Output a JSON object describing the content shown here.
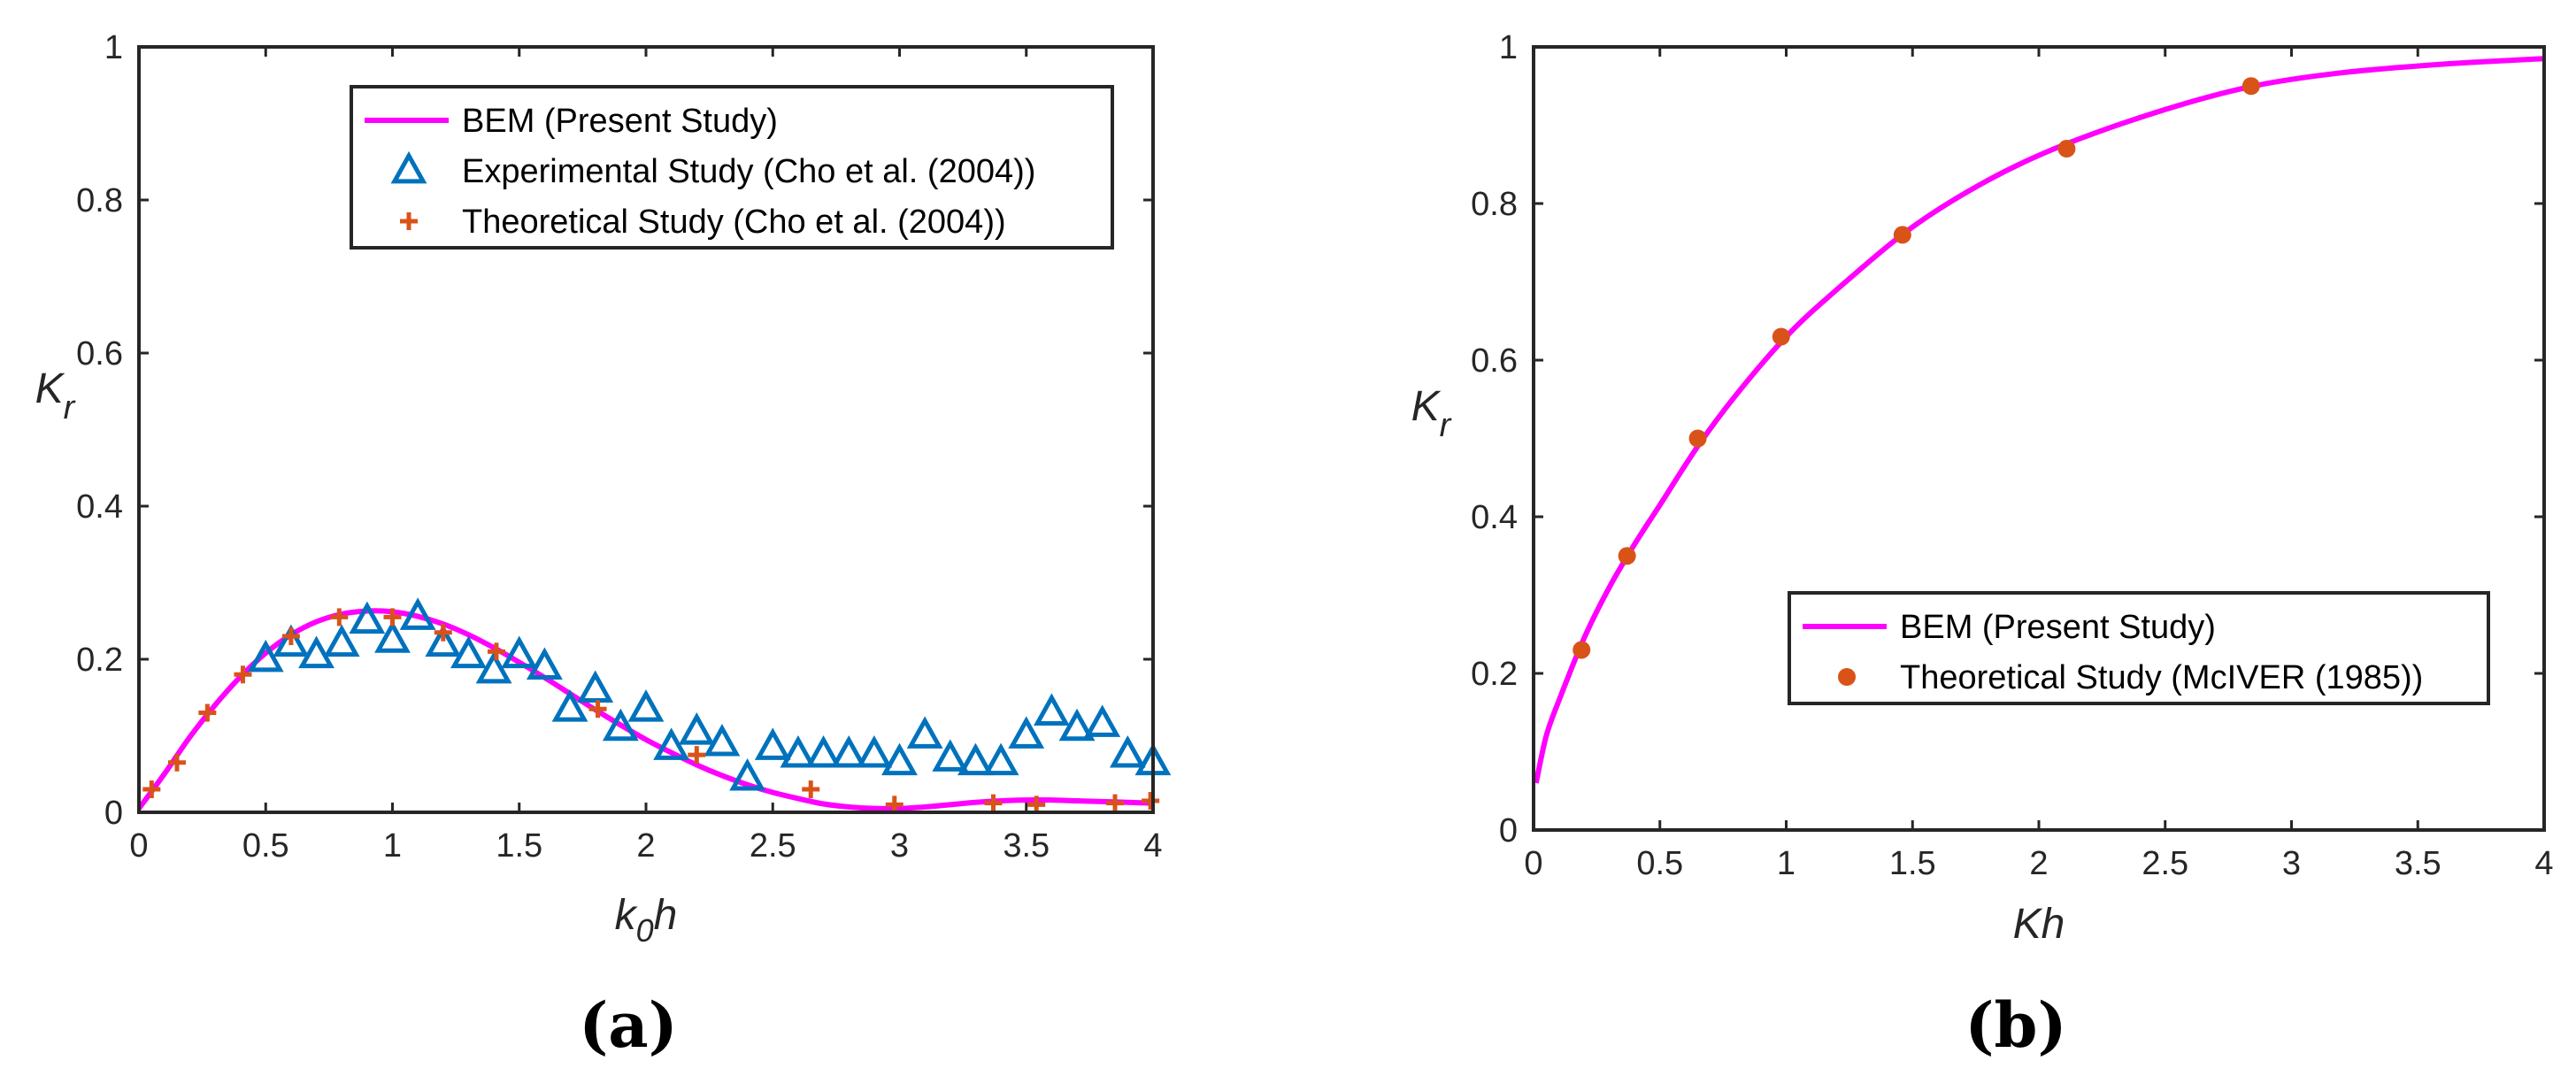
{
  "chart_data": [
    {
      "type": "line",
      "panel_label": "(a)",
      "xlabel": "k",
      "xlabel_sub": "0",
      "xlabel_suffix": "h",
      "ylabel": "K",
      "ylabel_sub": "r",
      "xlim": [
        0,
        4
      ],
      "ylim": [
        0,
        1
      ],
      "xticks": [
        "0",
        "0.5",
        "1",
        "1.5",
        "2",
        "2.5",
        "3",
        "3.5",
        "4"
      ],
      "yticks": [
        "0",
        "0.2",
        "0.4",
        "0.6",
        "0.8",
        "1"
      ],
      "legend_position": "top-right",
      "series": [
        {
          "name": "BEM (Present Study)",
          "style": "line",
          "color": "#FF00FF",
          "x": [
            0,
            0.1,
            0.2,
            0.3,
            0.4,
            0.5,
            0.6,
            0.7,
            0.8,
            0.9,
            1.0,
            1.1,
            1.2,
            1.3,
            1.4,
            1.5,
            1.6,
            1.7,
            1.8,
            1.9,
            2.0,
            2.1,
            2.2,
            2.3,
            2.4,
            2.5,
            2.6,
            2.7,
            2.8,
            2.9,
            3.0,
            3.1,
            3.2,
            3.3,
            3.4,
            3.5,
            3.6,
            3.7,
            3.8,
            3.9,
            4.0
          ],
          "y": [
            0.005,
            0.05,
            0.098,
            0.14,
            0.177,
            0.208,
            0.232,
            0.249,
            0.259,
            0.263,
            0.262,
            0.256,
            0.246,
            0.232,
            0.215,
            0.196,
            0.176,
            0.155,
            0.134,
            0.114,
            0.095,
            0.078,
            0.062,
            0.048,
            0.036,
            0.026,
            0.018,
            0.011,
            0.007,
            0.005,
            0.005,
            0.007,
            0.01,
            0.013,
            0.015,
            0.016,
            0.016,
            0.015,
            0.014,
            0.013,
            0.012
          ]
        },
        {
          "name": "Experimental Study (Cho et al. (2004))",
          "style": "triangle",
          "color": "#0072BD",
          "x": [
            0.5,
            0.6,
            0.7,
            0.8,
            0.9,
            1.0,
            1.1,
            1.2,
            1.3,
            1.4,
            1.5,
            1.6,
            1.7,
            1.8,
            1.9,
            2.0,
            2.1,
            2.2,
            2.3,
            2.4,
            2.5,
            2.6,
            2.7,
            2.8,
            2.9,
            3.0,
            3.1,
            3.2,
            3.3,
            3.4,
            3.5,
            3.6,
            3.7,
            3.8,
            3.9,
            4.0
          ],
          "y": [
            0.2,
            0.22,
            0.205,
            0.22,
            0.25,
            0.225,
            0.255,
            0.22,
            0.205,
            0.185,
            0.205,
            0.19,
            0.135,
            0.16,
            0.11,
            0.135,
            0.085,
            0.105,
            0.09,
            0.045,
            0.085,
            0.075,
            0.075,
            0.075,
            0.075,
            0.065,
            0.1,
            0.07,
            0.065,
            0.065,
            0.1,
            0.13,
            0.11,
            0.115,
            0.075,
            0.065
          ]
        },
        {
          "name": "Theoretical Study (Cho et al. (2004))",
          "style": "plus",
          "color": "#D95319",
          "x": [
            0.05,
            0.15,
            0.27,
            0.41,
            0.6,
            0.79,
            1.0,
            1.2,
            1.41,
            1.81,
            2.2,
            2.65,
            2.98,
            3.37,
            3.54,
            3.85,
            3.99
          ],
          "y": [
            0.03,
            0.065,
            0.13,
            0.18,
            0.23,
            0.255,
            0.255,
            0.235,
            0.21,
            0.135,
            0.075,
            0.03,
            0.01,
            0.012,
            0.01,
            0.012,
            0.015
          ]
        }
      ]
    },
    {
      "type": "line",
      "panel_label": "(b)",
      "xlabel": "Kh",
      "ylabel": "K",
      "ylabel_sub": "r",
      "xlim": [
        0,
        4
      ],
      "ylim": [
        0,
        1
      ],
      "xticks": [
        "0",
        "0.5",
        "1",
        "1.5",
        "2",
        "2.5",
        "3",
        "3.5",
        "4"
      ],
      "yticks": [
        "0",
        "0.2",
        "0.4",
        "0.6",
        "0.8",
        "1"
      ],
      "legend_position": "bottom-right",
      "series": [
        {
          "name": "BEM (Present Study)",
          "style": "line",
          "color": "#FF00FF",
          "x": [
            0.01,
            0.05,
            0.1,
            0.2,
            0.3,
            0.4,
            0.5,
            0.65,
            0.8,
            1.0,
            1.2,
            1.5,
            1.8,
            2.1,
            2.5,
            2.85,
            3.2,
            3.6,
            4.0
          ],
          "y": [
            0.06,
            0.12,
            0.165,
            0.245,
            0.31,
            0.365,
            0.415,
            0.49,
            0.555,
            0.63,
            0.69,
            0.77,
            0.83,
            0.875,
            0.92,
            0.95,
            0.967,
            0.978,
            0.985
          ]
        },
        {
          "name": "Theoretical Study (McIVER (1985))",
          "style": "dot",
          "color": "#D95319",
          "x": [
            0.19,
            0.37,
            0.65,
            0.98,
            1.46,
            2.11,
            2.84
          ],
          "y": [
            0.23,
            0.35,
            0.5,
            0.63,
            0.76,
            0.87,
            0.95
          ]
        }
      ]
    }
  ]
}
